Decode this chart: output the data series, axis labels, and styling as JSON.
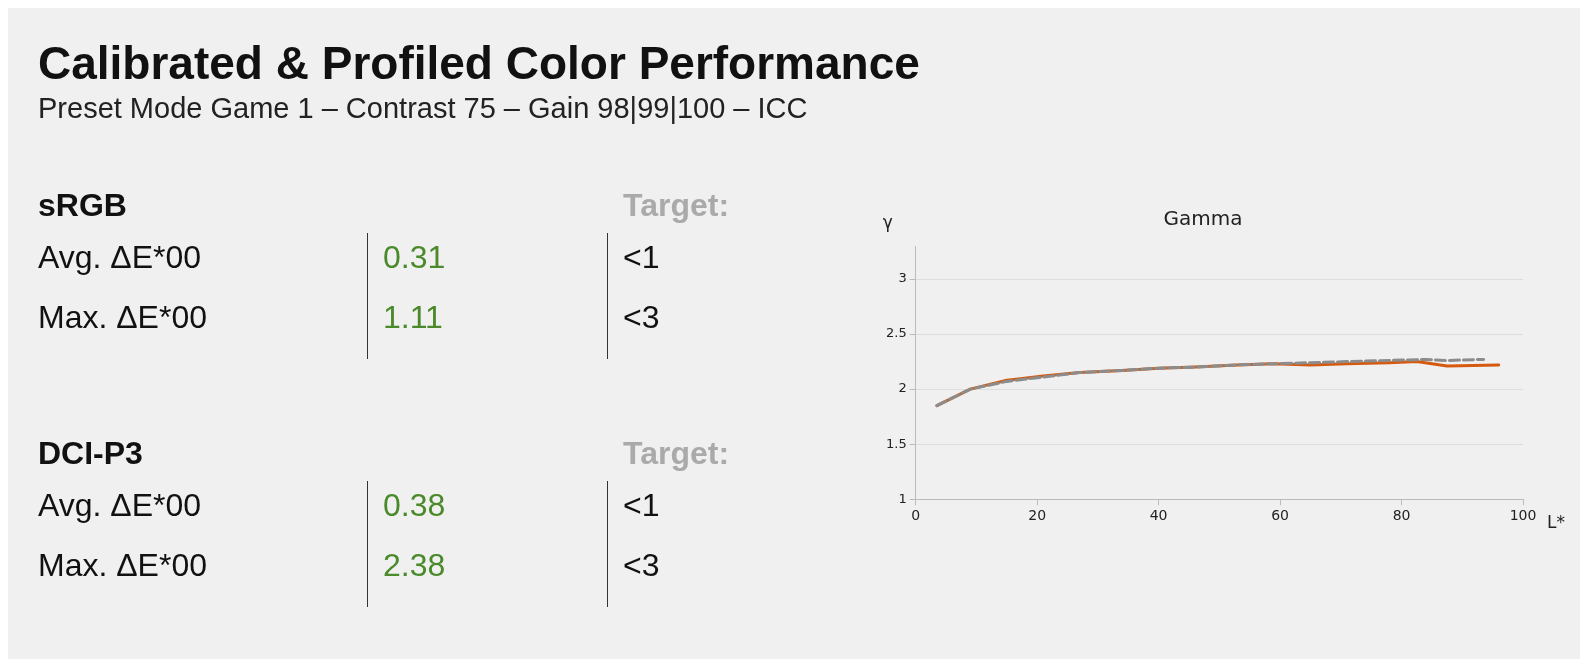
{
  "chart_data": [
    {
      "type": "other",
      "title": "Calibrated & Profiled Color Performance",
      "subtitle": "Preset Mode Game 1 – Contrast 75 – Gain 98|99|100 – ICC",
      "annotations": [
        "sRGB",
        "Target:",
        "Avg. ΔE*00",
        "0.31",
        "<1",
        "Max. ΔE*00",
        "1.11",
        "<3",
        "DCI-P3",
        "Target:",
        "Avg. ΔE*00",
        "0.38",
        "<1",
        "Max. ΔE*00",
        "2.38",
        "<3"
      ]
    },
    {
      "type": "line",
      "title": "Gamma",
      "xlabel": "L*",
      "ylabel": "γ",
      "xlim": [
        0,
        100
      ],
      "xticks": [
        0,
        20,
        40,
        60,
        80,
        100
      ],
      "ylim": [
        1,
        3.3
      ],
      "yticks": [
        1,
        1.5,
        2,
        2.5,
        3
      ],
      "grid": "y",
      "legend": false,
      "marker": "none",
      "x": [
        3.5,
        9,
        15,
        21,
        27,
        34,
        40,
        46,
        53,
        59,
        65,
        71,
        78,
        82.5,
        87.5,
        96
      ],
      "series": [
        {
          "color": "#8c8c8c",
          "line_style": "dashed",
          "x": [
            3.5,
            9,
            15,
            21,
            27,
            34,
            40,
            46,
            53,
            59,
            65,
            71,
            78,
            84,
            87.5,
            93.5
          ],
          "values": [
            1.85,
            2.0,
            2.07,
            2.11,
            2.15,
            2.17,
            2.19,
            2.2,
            2.22,
            2.23,
            2.24,
            2.25,
            2.26,
            2.27,
            2.26,
            2.27
          ]
        },
        {
          "color": "#d55a0f",
          "line_style": "solid",
          "values": [
            1.85,
            2.0,
            2.08,
            2.12,
            2.15,
            2.17,
            2.19,
            2.2,
            2.22,
            2.23,
            2.22,
            2.23,
            2.24,
            2.25,
            2.21,
            2.22
          ]
        }
      ]
    }
  ]
}
